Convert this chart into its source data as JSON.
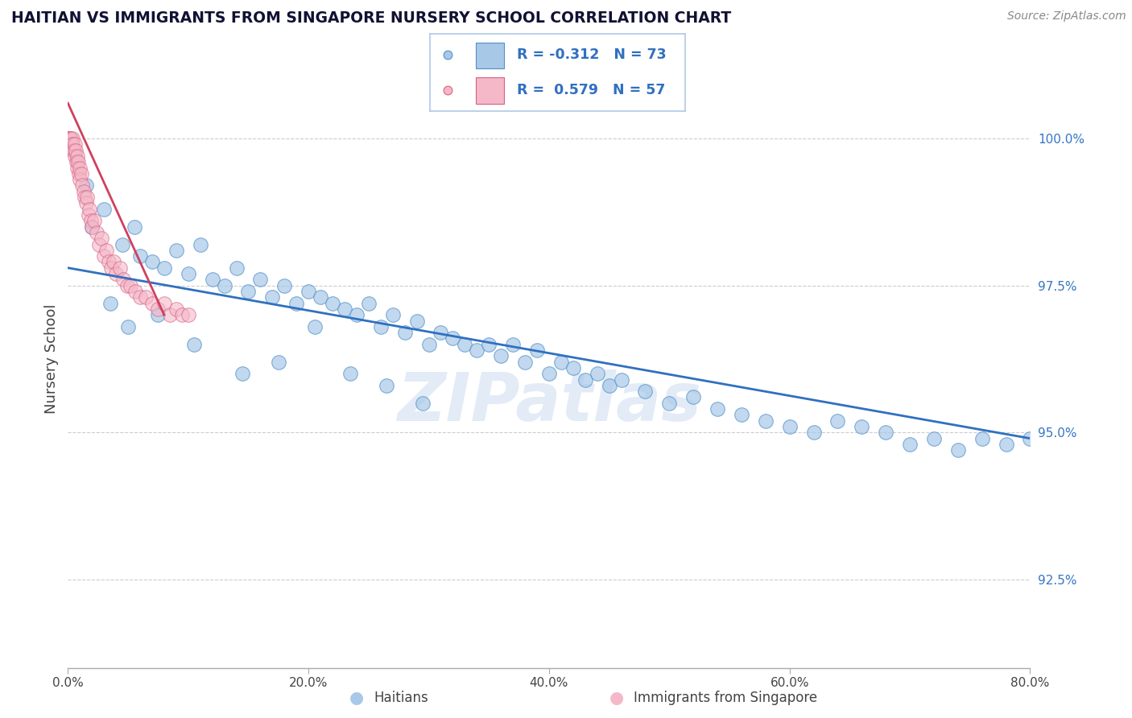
{
  "title": "HAITIAN VS IMMIGRANTS FROM SINGAPORE NURSERY SCHOOL CORRELATION CHART",
  "source": "Source: ZipAtlas.com",
  "xlabel_haitians": "Haitians",
  "xlabel_singapore": "Immigrants from Singapore",
  "ylabel": "Nursery School",
  "xmin": 0.0,
  "xmax": 80.0,
  "ymin": 91.0,
  "ymax": 101.5,
  "yticks": [
    92.5,
    95.0,
    97.5,
    100.0
  ],
  "xticks": [
    0.0,
    20.0,
    40.0,
    60.0,
    80.0
  ],
  "R_blue": -0.312,
  "N_blue": 73,
  "R_pink": 0.579,
  "N_pink": 57,
  "blue_color": "#a8c8e8",
  "pink_color": "#f4b8c8",
  "blue_edge_color": "#5090c8",
  "pink_edge_color": "#d86080",
  "line_blue_color": "#3070c0",
  "line_pink_color": "#d04060",
  "bg_color": "#ffffff",
  "grid_color": "#cccccc",
  "text_color": "#444444",
  "tick_color": "#3575c5",
  "source_color": "#888888",
  "watermark_color": "#d0dff0",
  "watermark": "ZIPatlas",
  "blue_scatter_x": [
    1.5,
    2.0,
    3.0,
    4.5,
    5.5,
    6.0,
    7.0,
    8.0,
    9.0,
    10.0,
    11.0,
    12.0,
    13.0,
    14.0,
    15.0,
    16.0,
    17.0,
    18.0,
    19.0,
    20.0,
    21.0,
    22.0,
    23.0,
    24.0,
    25.0,
    26.0,
    27.0,
    28.0,
    29.0,
    30.0,
    31.0,
    32.0,
    33.0,
    34.0,
    35.0,
    36.0,
    37.0,
    38.0,
    39.0,
    40.0,
    41.0,
    42.0,
    43.0,
    44.0,
    45.0,
    46.0,
    48.0,
    50.0,
    52.0,
    54.0,
    56.0,
    58.0,
    60.0,
    62.0,
    64.0,
    66.0,
    68.0,
    70.0,
    72.0,
    74.0,
    76.0,
    78.0,
    80.0,
    3.5,
    5.0,
    7.5,
    10.5,
    14.5,
    17.5,
    20.5,
    23.5,
    26.5,
    29.5
  ],
  "blue_scatter_y": [
    99.2,
    98.5,
    98.8,
    98.2,
    98.5,
    98.0,
    97.9,
    97.8,
    98.1,
    97.7,
    98.2,
    97.6,
    97.5,
    97.8,
    97.4,
    97.6,
    97.3,
    97.5,
    97.2,
    97.4,
    97.3,
    97.2,
    97.1,
    97.0,
    97.2,
    96.8,
    97.0,
    96.7,
    96.9,
    96.5,
    96.7,
    96.6,
    96.5,
    96.4,
    96.5,
    96.3,
    96.5,
    96.2,
    96.4,
    96.0,
    96.2,
    96.1,
    95.9,
    96.0,
    95.8,
    95.9,
    95.7,
    95.5,
    95.6,
    95.4,
    95.3,
    95.2,
    95.1,
    95.0,
    95.2,
    95.1,
    95.0,
    94.8,
    94.9,
    94.7,
    94.9,
    94.8,
    94.9,
    97.2,
    96.8,
    97.0,
    96.5,
    96.0,
    96.2,
    96.8,
    96.0,
    95.8,
    95.5
  ],
  "pink_scatter_x": [
    0.05,
    0.08,
    0.1,
    0.12,
    0.15,
    0.18,
    0.2,
    0.25,
    0.3,
    0.35,
    0.4,
    0.45,
    0.5,
    0.55,
    0.6,
    0.65,
    0.7,
    0.75,
    0.8,
    0.85,
    0.9,
    0.95,
    1.0,
    1.1,
    1.2,
    1.3,
    1.4,
    1.5,
    1.6,
    1.7,
    1.8,
    1.9,
    2.0,
    2.2,
    2.4,
    2.6,
    2.8,
    3.0,
    3.2,
    3.4,
    3.6,
    3.8,
    4.0,
    4.3,
    4.6,
    4.9,
    5.2,
    5.6,
    6.0,
    6.5,
    7.0,
    7.5,
    8.0,
    8.5,
    9.0,
    9.5,
    10.0
  ],
  "pink_scatter_y": [
    100.0,
    100.0,
    100.0,
    100.0,
    100.0,
    100.0,
    100.0,
    100.0,
    99.9,
    100.0,
    99.9,
    99.8,
    99.8,
    99.9,
    99.7,
    99.8,
    99.6,
    99.7,
    99.5,
    99.6,
    99.4,
    99.5,
    99.3,
    99.4,
    99.2,
    99.1,
    99.0,
    98.9,
    99.0,
    98.7,
    98.8,
    98.6,
    98.5,
    98.6,
    98.4,
    98.2,
    98.3,
    98.0,
    98.1,
    97.9,
    97.8,
    97.9,
    97.7,
    97.8,
    97.6,
    97.5,
    97.5,
    97.4,
    97.3,
    97.3,
    97.2,
    97.1,
    97.2,
    97.0,
    97.1,
    97.0,
    97.0
  ],
  "blue_line_x0": 0.0,
  "blue_line_y0": 97.8,
  "blue_line_x1": 80.0,
  "blue_line_y1": 94.9,
  "pink_line_x0": 0.0,
  "pink_line_y0": 100.6,
  "pink_line_x1": 8.0,
  "pink_line_y1": 97.0
}
